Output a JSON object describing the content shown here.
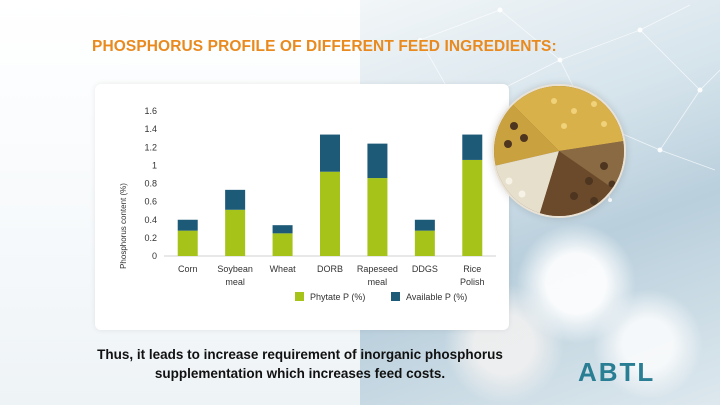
{
  "slide": {
    "title": "PHOSPHORUS PROFILE OF DIFFERENT FEED INGREDIENTS:",
    "caption": "Thus, it leads to increase requirement of inorganic phosphorus supplementation which increases feed costs.",
    "logo": "ABTL"
  },
  "colors": {
    "title": "#e98a1f",
    "phytate": "#a6c31a",
    "available": "#1d5a78",
    "logo": "#2a7e93"
  },
  "chart_data": {
    "type": "bar",
    "stacked": true,
    "title": "",
    "xlabel": "",
    "ylabel": "Phosphorus content (%)",
    "ylim": [
      0,
      1.6
    ],
    "yticks": [
      0,
      0.2,
      0.4,
      0.6,
      0.8,
      1,
      1.2,
      1.4,
      1.6
    ],
    "grid": false,
    "legend_position": "bottom",
    "categories": [
      [
        "Corn"
      ],
      [
        "Soybean",
        "meal"
      ],
      [
        "Wheat"
      ],
      [
        "DORB"
      ],
      [
        "Rapeseed",
        "meal"
      ],
      [
        "DDGS"
      ],
      [
        "Rice",
        "Polish"
      ]
    ],
    "series": [
      {
        "name": "Phytate P (%)",
        "values": [
          0.28,
          0.51,
          0.25,
          0.93,
          0.86,
          0.28,
          1.06
        ]
      },
      {
        "name": "Available P (%)",
        "values": [
          0.12,
          0.22,
          0.09,
          0.41,
          0.38,
          0.12,
          0.28
        ]
      }
    ]
  }
}
